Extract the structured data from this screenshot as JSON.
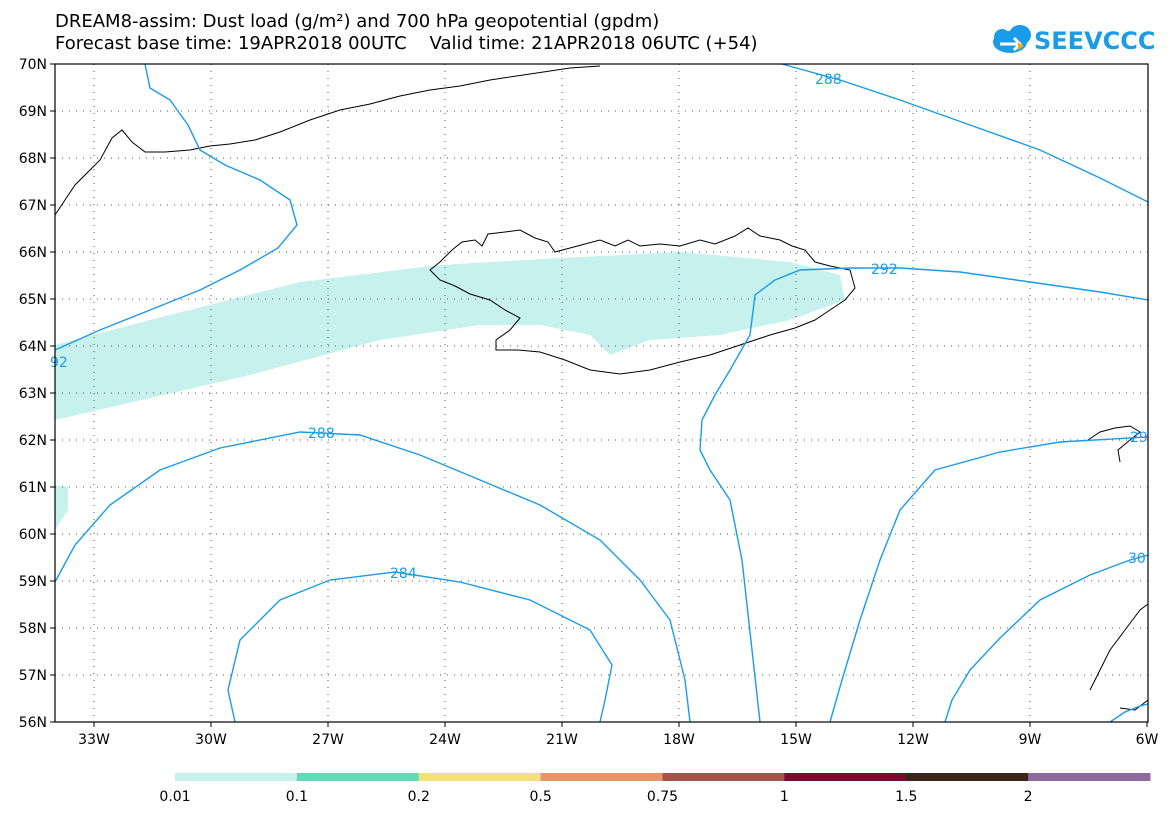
{
  "header": {
    "title_line1": "DREAM8-assim: Dust load (g/m²) and 700 hPa geopotential (gpdm)",
    "title_line2": "Forecast base time: 19APR2018 00UTC    Valid time: 21APR2018 06UTC (+54)"
  },
  "logo": {
    "text": "SEEVCCC",
    "icon": "cloud-icon",
    "color": "#1a9ce8"
  },
  "map": {
    "lat_labels": [
      "70N",
      "69N",
      "68N",
      "67N",
      "66N",
      "65N",
      "64N",
      "63N",
      "62N",
      "61N",
      "60N",
      "59N",
      "58N",
      "57N",
      "56N"
    ],
    "lon_labels": [
      "33W",
      "30W",
      "27W",
      "24W",
      "21W",
      "18W",
      "15W",
      "12W",
      "9W",
      "6W"
    ],
    "contour_color": "#1a9ce8",
    "dust_fill_color": "#c6f1ec",
    "contour_labels": [
      "288",
      "292",
      "92",
      "288",
      "284",
      "30",
      "29"
    ]
  },
  "colorbar": {
    "labels": [
      "0.01",
      "0.1",
      "0.2",
      "0.5",
      "0.75",
      "1",
      "1.5",
      "2"
    ],
    "colors": [
      "#c6f1ec",
      "#5fdbb5",
      "#f5e17a",
      "#e8946a",
      "#a9524a",
      "#7d0a2c",
      "#3b2418",
      "#8e6aa0"
    ]
  }
}
